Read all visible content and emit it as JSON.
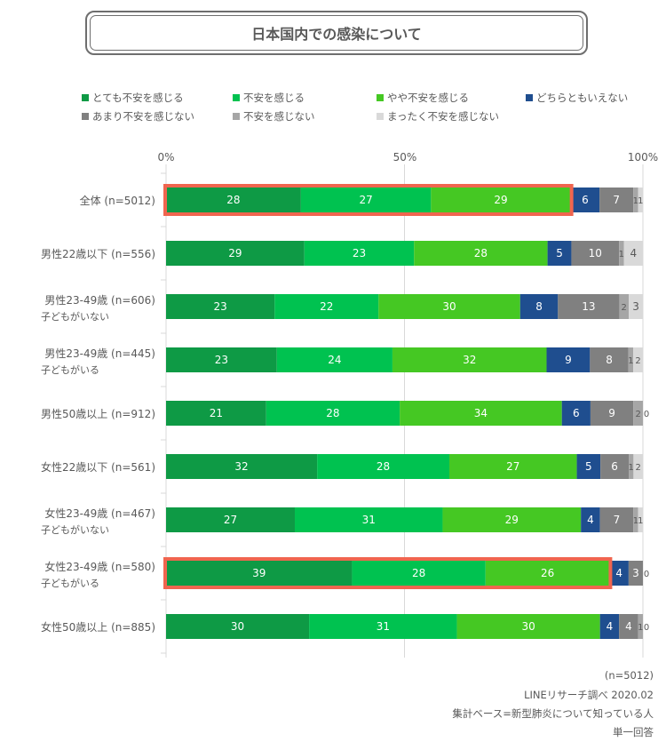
{
  "chart_data": {
    "type": "bar",
    "orientation": "horizontal",
    "stacked": true,
    "title": "日本国内での感染について",
    "xlabel": "",
    "ylabel": "",
    "xlim": [
      0,
      100
    ],
    "x_ticks": [
      "0%",
      "50%",
      "100%"
    ],
    "grid": true,
    "legend_position": "top",
    "legend": [
      {
        "name": "とても不安を感じる",
        "color": "#0E9A45"
      },
      {
        "name": "不安を感じる",
        "color": "#00C250"
      },
      {
        "name": "やや不安を感じる",
        "color": "#45C823"
      },
      {
        "name": "どちらともいえない",
        "color": "#1F4E8F"
      },
      {
        "name": "あまり不安を感じない",
        "color": "#808080"
      },
      {
        "name": "不安を感じない",
        "color": "#A6A6A6"
      },
      {
        "name": "まったく不安を感じない",
        "color": "#D9D9D9"
      }
    ],
    "categories": [
      {
        "label": "全体 (n=5012)",
        "sub": "",
        "highlight": true
      },
      {
        "label": "男性22歳以下 (n=556)",
        "sub": "",
        "highlight": false
      },
      {
        "label": "男性23-49歳 (n=606)",
        "sub": "子どもがいない",
        "highlight": false
      },
      {
        "label": "男性23-49歳 (n=445)",
        "sub": "子どもがいる",
        "highlight": false
      },
      {
        "label": "男性50歳以上 (n=912)",
        "sub": "",
        "highlight": false
      },
      {
        "label": "女性22歳以下 (n=561)",
        "sub": "",
        "highlight": false
      },
      {
        "label": "女性23-49歳 (n=467)",
        "sub": "子どもがいない",
        "highlight": false
      },
      {
        "label": "女性23-49歳 (n=580)",
        "sub": "子どもがいる",
        "highlight": true
      },
      {
        "label": "女性50歳以上 (n=885)",
        "sub": "",
        "highlight": false
      }
    ],
    "series_values": [
      [
        28,
        27,
        29,
        6,
        7,
        1,
        1
      ],
      [
        29,
        23,
        28,
        5,
        10,
        1,
        4
      ],
      [
        23,
        22,
        30,
        8,
        13,
        2,
        3
      ],
      [
        23,
        24,
        32,
        9,
        8,
        1,
        2
      ],
      [
        21,
        28,
        34,
        6,
        9,
        2,
        0
      ],
      [
        32,
        28,
        27,
        5,
        6,
        1,
        2
      ],
      [
        27,
        31,
        29,
        4,
        7,
        1,
        1
      ],
      [
        39,
        28,
        26,
        4,
        3,
        0,
        null
      ],
      [
        30,
        31,
        30,
        4,
        4,
        1,
        0
      ]
    ],
    "highlight_color": "#F0654F"
  },
  "footer": {
    "n": "(n=5012)",
    "source": "LINEリサーチ調べ 2020.02",
    "base": "集計ベース=新型肺炎について知っている人",
    "answer_type": "単一回答"
  }
}
